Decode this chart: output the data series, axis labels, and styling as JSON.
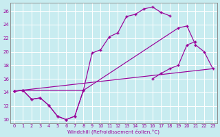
{
  "xlabel": "Windchill (Refroidissement éolien,°C)",
  "bg_color": "#c8ecf0",
  "grid_color": "#ffffff",
  "line_color": "#990099",
  "xlim": [
    -0.5,
    23.5
  ],
  "ylim": [
    9.5,
    27.2
  ],
  "xticks": [
    0,
    1,
    2,
    3,
    4,
    5,
    6,
    7,
    8,
    9,
    10,
    11,
    12,
    13,
    14,
    15,
    16,
    17,
    18,
    19,
    20,
    21,
    22,
    23
  ],
  "yticks": [
    10,
    12,
    14,
    16,
    18,
    20,
    22,
    24,
    26
  ],
  "curve1_x": [
    0,
    1,
    2,
    3,
    4,
    5,
    6,
    7,
    8,
    9,
    10,
    11,
    12,
    13,
    14,
    15,
    16,
    17,
    18,
    19,
    20,
    21,
    22,
    23
  ],
  "curve1_y": [
    14.2,
    14.3,
    13.0,
    13.2,
    12.1,
    10.5,
    10.0,
    10.5,
    14.3,
    19.8,
    20.3,
    22.2,
    22.8,
    25.2,
    25.5,
    26.3,
    26.6,
    25.8,
    25.3,
    null,
    null,
    null,
    null,
    null
  ],
  "curve2_x": [
    0,
    1,
    2,
    3,
    4,
    5,
    6,
    7,
    8,
    9,
    10,
    11,
    12,
    13,
    14,
    15,
    16,
    17,
    18,
    19,
    20,
    21,
    22,
    23
  ],
  "curve2_y": [
    14.2,
    14.3,
    13.0,
    13.2,
    12.1,
    10.5,
    10.0,
    10.5,
    14.3,
    null,
    null,
    null,
    null,
    null,
    null,
    null,
    16.0,
    16.8,
    17.5,
    18.0,
    21.0,
    21.5,
    null,
    null
  ],
  "line3_x": [
    0,
    23
  ],
  "line3_y": [
    14.2,
    17.5
  ],
  "line4_x": [
    0,
    1,
    8,
    19,
    20,
    21,
    22,
    23
  ],
  "line4_y": [
    14.2,
    14.3,
    14.3,
    23.5,
    23.8,
    21.0,
    20.0,
    17.5
  ]
}
